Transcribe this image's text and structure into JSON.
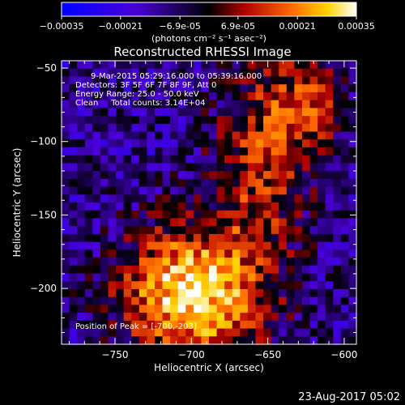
{
  "chart_data": {
    "type": "heatmap",
    "title": "Reconstructed RHESSI Image",
    "xlabel": "Heliocentric X (arcsec)",
    "ylabel": "Heliocentric Y (arcsec)",
    "xlim": [
      -785,
      -592
    ],
    "ylim": [
      -238,
      -45
    ],
    "x_ticks": [
      -750,
      -700,
      -650,
      -600
    ],
    "y_ticks": [
      -50,
      -100,
      -150,
      -200
    ],
    "colorbar": {
      "unit_label": "(photons cm⁻² s⁻¹ asec⁻²)",
      "range": [
        -0.00035,
        0.00035
      ],
      "ticks": [
        -0.00035,
        -0.00021,
        -6.9e-05,
        6.9e-05,
        0.00021,
        0.00035
      ],
      "tick_labels": [
        "-0.00035",
        "-0.00021",
        "-6.9e-05",
        "6.9e-05",
        "0.00021",
        "0.00035"
      ]
    },
    "annotations": [
      "9-Mar-2015 05:29:16.000 to 05:39:16.000",
      "Detectors: 3F 5F 6F 7F 8F 9F, Att 0",
      "Energy Range: 25.0 - 50.0 keV",
      "Clean     Total counts: 3.14E+04"
    ],
    "peak_label": "Position of Peak = [-700,-203]",
    "peak_position": [
      -700,
      -203
    ],
    "grid": false
  },
  "footer": {
    "date": "23-Aug-2017 05:02"
  },
  "colors": {
    "background": "#000000",
    "frame": "#ffffff"
  }
}
